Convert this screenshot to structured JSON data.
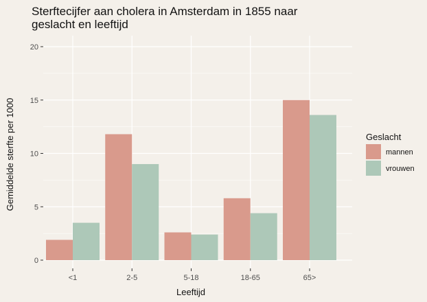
{
  "chart_data": {
    "type": "bar",
    "title": [
      "Sterftecijfer aan cholera in Amsterdam in 1855 naar",
      "geslacht en leeftijd"
    ],
    "xlabel": "Leeftijd",
    "ylabel": "Gemiddelde sterfte per 1000",
    "categories": [
      "<1",
      "2-5",
      "5-18",
      "18-65",
      "65>"
    ],
    "series": [
      {
        "name": "mannen",
        "values": [
          1.9,
          11.8,
          2.6,
          5.8,
          15.0
        ],
        "color": "#d99a8c"
      },
      {
        "name": "vrouwen",
        "values": [
          3.5,
          9.0,
          2.4,
          4.4,
          13.6
        ],
        "color": "#adc8b8"
      }
    ],
    "ylim": [
      0,
      20
    ],
    "y_ticks": [
      0,
      5,
      10,
      15,
      20
    ],
    "grid": true,
    "legend": {
      "title": "Geslacht",
      "placement": "right"
    },
    "colors": {
      "background": "#f4f0ea",
      "grid": "#ffffff"
    }
  }
}
